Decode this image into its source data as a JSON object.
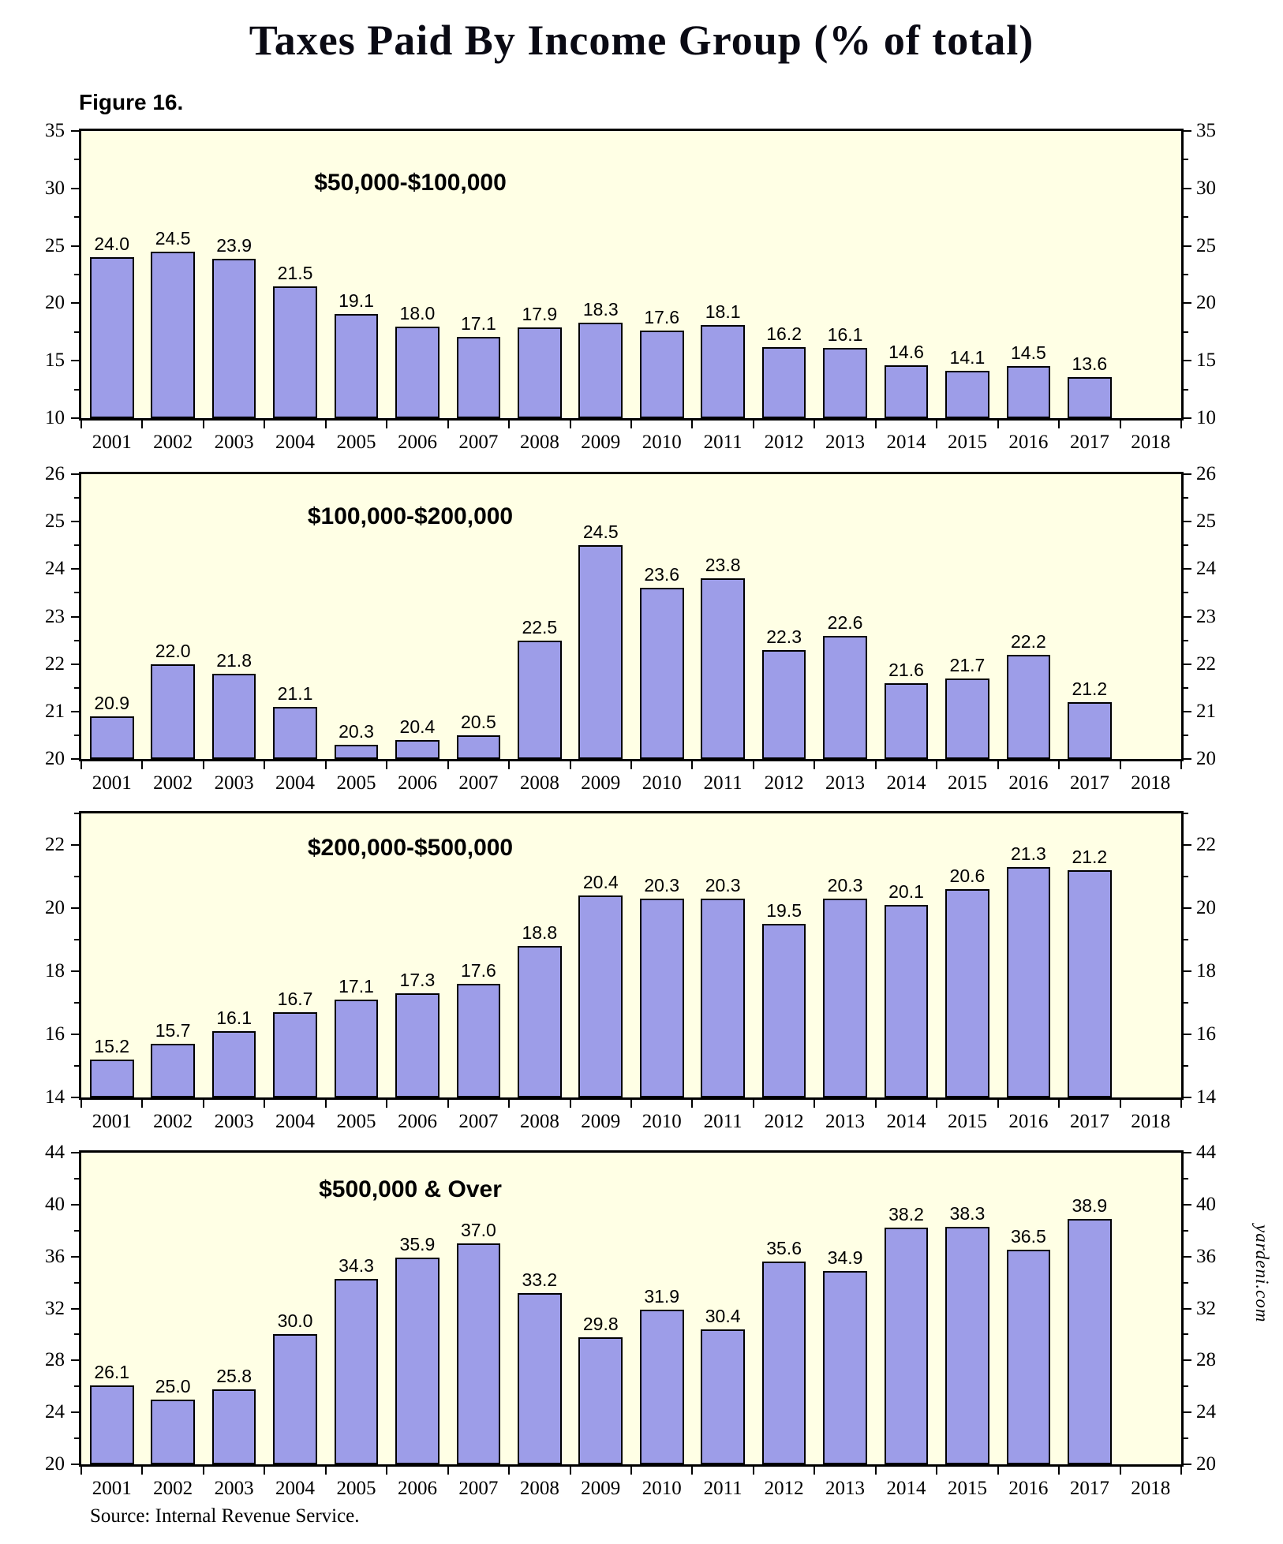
{
  "page": {
    "title": "Taxes Paid By Income Group (% of total)",
    "figure_label": "Figure 16.",
    "source": "Source: Internal Revenue Service.",
    "watermark": "yardeni.com"
  },
  "colors": {
    "plot_bg": "#FFFFE5",
    "bar_fill": "#9D9DE8",
    "bar_border": "#000000",
    "axis": "#000000"
  },
  "chart_data": [
    {
      "type": "bar",
      "title": "$50,000-$100,000",
      "categories": [
        "2001",
        "2002",
        "2003",
        "2004",
        "2005",
        "2006",
        "2007",
        "2008",
        "2009",
        "2010",
        "2011",
        "2012",
        "2013",
        "2014",
        "2015",
        "2016",
        "2017",
        "2018"
      ],
      "values": [
        24.0,
        24.5,
        23.9,
        21.5,
        19.1,
        18.0,
        17.1,
        17.9,
        18.3,
        17.6,
        18.1,
        16.2,
        16.1,
        14.6,
        14.1,
        14.5,
        13.6,
        null
      ],
      "ylim": [
        10,
        35
      ],
      "yticks": [
        10,
        15,
        20,
        25,
        30,
        35
      ],
      "grid": false,
      "value_labels": true
    },
    {
      "type": "bar",
      "title": "$100,000-$200,000",
      "categories": [
        "2001",
        "2002",
        "2003",
        "2004",
        "2005",
        "2006",
        "2007",
        "2008",
        "2009",
        "2010",
        "2011",
        "2012",
        "2013",
        "2014",
        "2015",
        "2016",
        "2017",
        "2018"
      ],
      "values": [
        20.9,
        22.0,
        21.8,
        21.1,
        20.3,
        20.4,
        20.5,
        22.5,
        24.5,
        23.6,
        23.8,
        22.3,
        22.6,
        21.6,
        21.7,
        22.2,
        21.2,
        null
      ],
      "ylim": [
        20,
        26
      ],
      "yticks": [
        20,
        21,
        22,
        23,
        24,
        25,
        26
      ],
      "grid": false,
      "value_labels": true
    },
    {
      "type": "bar",
      "title": "$200,000-$500,000",
      "categories": [
        "2001",
        "2002",
        "2003",
        "2004",
        "2005",
        "2006",
        "2007",
        "2008",
        "2009",
        "2010",
        "2011",
        "2012",
        "2013",
        "2014",
        "2015",
        "2016",
        "2017",
        "2018"
      ],
      "values": [
        15.2,
        15.7,
        16.1,
        16.7,
        17.1,
        17.3,
        17.6,
        18.8,
        20.4,
        20.3,
        20.3,
        19.5,
        20.3,
        20.1,
        20.6,
        21.3,
        21.2,
        null
      ],
      "ylim": [
        14,
        23
      ],
      "yticks": [
        14,
        16,
        18,
        20,
        22
      ],
      "grid": false,
      "value_labels": true
    },
    {
      "type": "bar",
      "title": "$500,000 & Over",
      "categories": [
        "2001",
        "2002",
        "2003",
        "2004",
        "2005",
        "2006",
        "2007",
        "2008",
        "2009",
        "2010",
        "2011",
        "2012",
        "2013",
        "2014",
        "2015",
        "2016",
        "2017",
        "2018"
      ],
      "values": [
        26.1,
        25.0,
        25.8,
        30.0,
        34.3,
        35.9,
        37.0,
        33.2,
        29.8,
        31.9,
        30.4,
        35.6,
        34.9,
        38.2,
        38.3,
        36.5,
        38.9,
        null
      ],
      "ylim": [
        20,
        44
      ],
      "yticks": [
        20,
        24,
        28,
        32,
        36,
        40,
        44
      ],
      "grid": false,
      "value_labels": true
    }
  ]
}
